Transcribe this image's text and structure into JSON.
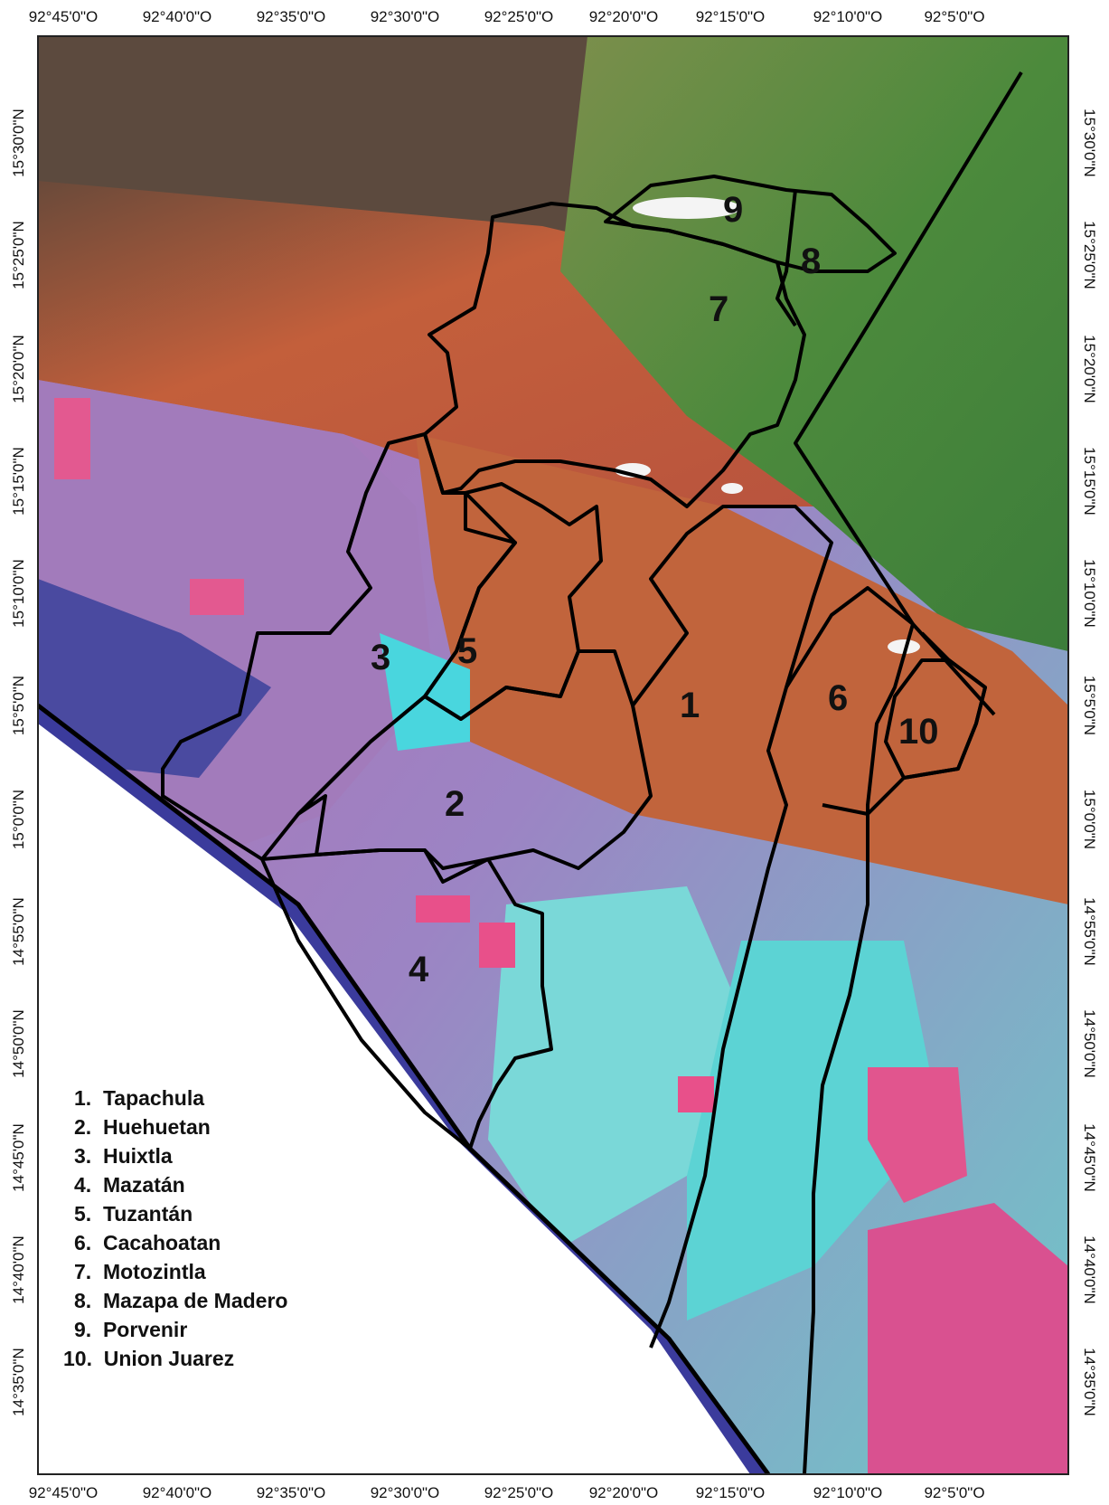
{
  "map": {
    "top_axis_labels": [
      "92°45'0\"O",
      "92°40'0\"O",
      "92°35'0\"O",
      "92°30'0\"O",
      "92°25'0\"O",
      "92°20'0\"O",
      "92°15'0\"O",
      "92°10'0\"O",
      "92°5'0\"O"
    ],
    "bottom_axis_labels": [
      "92°45'0\"O",
      "92°40'0\"O",
      "92°35'0\"O",
      "92°30'0\"O",
      "92°25'0\"O",
      "92°20'0\"O",
      "92°15'0\"O",
      "92°10'0\"O",
      "92°5'0\"O"
    ],
    "left_axis_labels": [
      "15°30'0\"N",
      "15°25'0\"N",
      "15°20'0\"N",
      "15°15'0\"N",
      "15°10'0\"N",
      "15°5'0\"N",
      "15°0'0\"N",
      "14°55'0\"N",
      "14°50'0\"N",
      "14°45'0\"N",
      "14°40'0\"N",
      "14°35'0\"N"
    ],
    "right_axis_labels": [
      "15°30'0\"N",
      "15°25'0\"N",
      "15°20'0\"N",
      "15°15'0\"N",
      "15°10'0\"N",
      "15°5'0\"N",
      "15°0'0\"N",
      "14°55'0\"N",
      "14°50'0\"N",
      "14°45'0\"N",
      "14°40'0\"N",
      "14°35'0\"N"
    ],
    "municipality_numbers": [
      "1",
      "2",
      "3",
      "4",
      "5",
      "6",
      "7",
      "8",
      "9",
      "10"
    ],
    "legend": [
      "1.  Tapachula",
      "2.  Huehuetan",
      "3.  Huixtla",
      "4.  Mazatán",
      "5.  Tuzantán",
      "6.  Cacahoatan",
      "7.  Motozintla",
      "8.  Mazapa de Madero",
      "9.  Porvenir",
      "10.  Union Juarez"
    ],
    "colors": {
      "mountains": "#c45a3a",
      "highlands": "#5a8a3a",
      "plains": "#b96fb0",
      "crops": "#e8508a",
      "cyan_fields": "#4ee6e0",
      "boundary": "#000000",
      "sea": "#ffffff"
    }
  }
}
